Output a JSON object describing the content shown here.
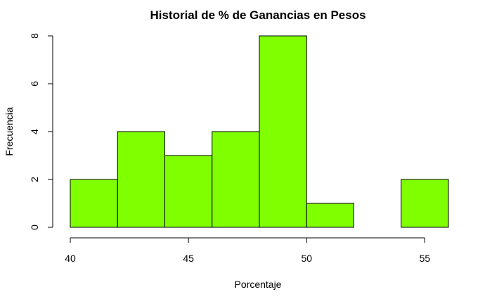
{
  "chart_data": {
    "type": "bar",
    "subtype": "histogram",
    "title": "Historial de % de Ganancias en Pesos",
    "xlabel": "Porcentaje",
    "ylabel": "Frecuencia",
    "bins": [
      {
        "start": 40,
        "end": 42,
        "count": 2
      },
      {
        "start": 42,
        "end": 44,
        "count": 4
      },
      {
        "start": 44,
        "end": 46,
        "count": 3
      },
      {
        "start": 46,
        "end": 48,
        "count": 4
      },
      {
        "start": 48,
        "end": 50,
        "count": 8
      },
      {
        "start": 50,
        "end": 52,
        "count": 1
      },
      {
        "start": 52,
        "end": 54,
        "count": 0
      },
      {
        "start": 54,
        "end": 56,
        "count": 2
      }
    ],
    "xlim": [
      40,
      56
    ],
    "ylim": [
      0,
      8
    ],
    "x_ticks": [
      40,
      45,
      50,
      55
    ],
    "y_ticks": [
      0,
      2,
      4,
      6,
      8
    ],
    "grid": false,
    "bar_color": "#80ff00",
    "border_color": "#000000"
  }
}
